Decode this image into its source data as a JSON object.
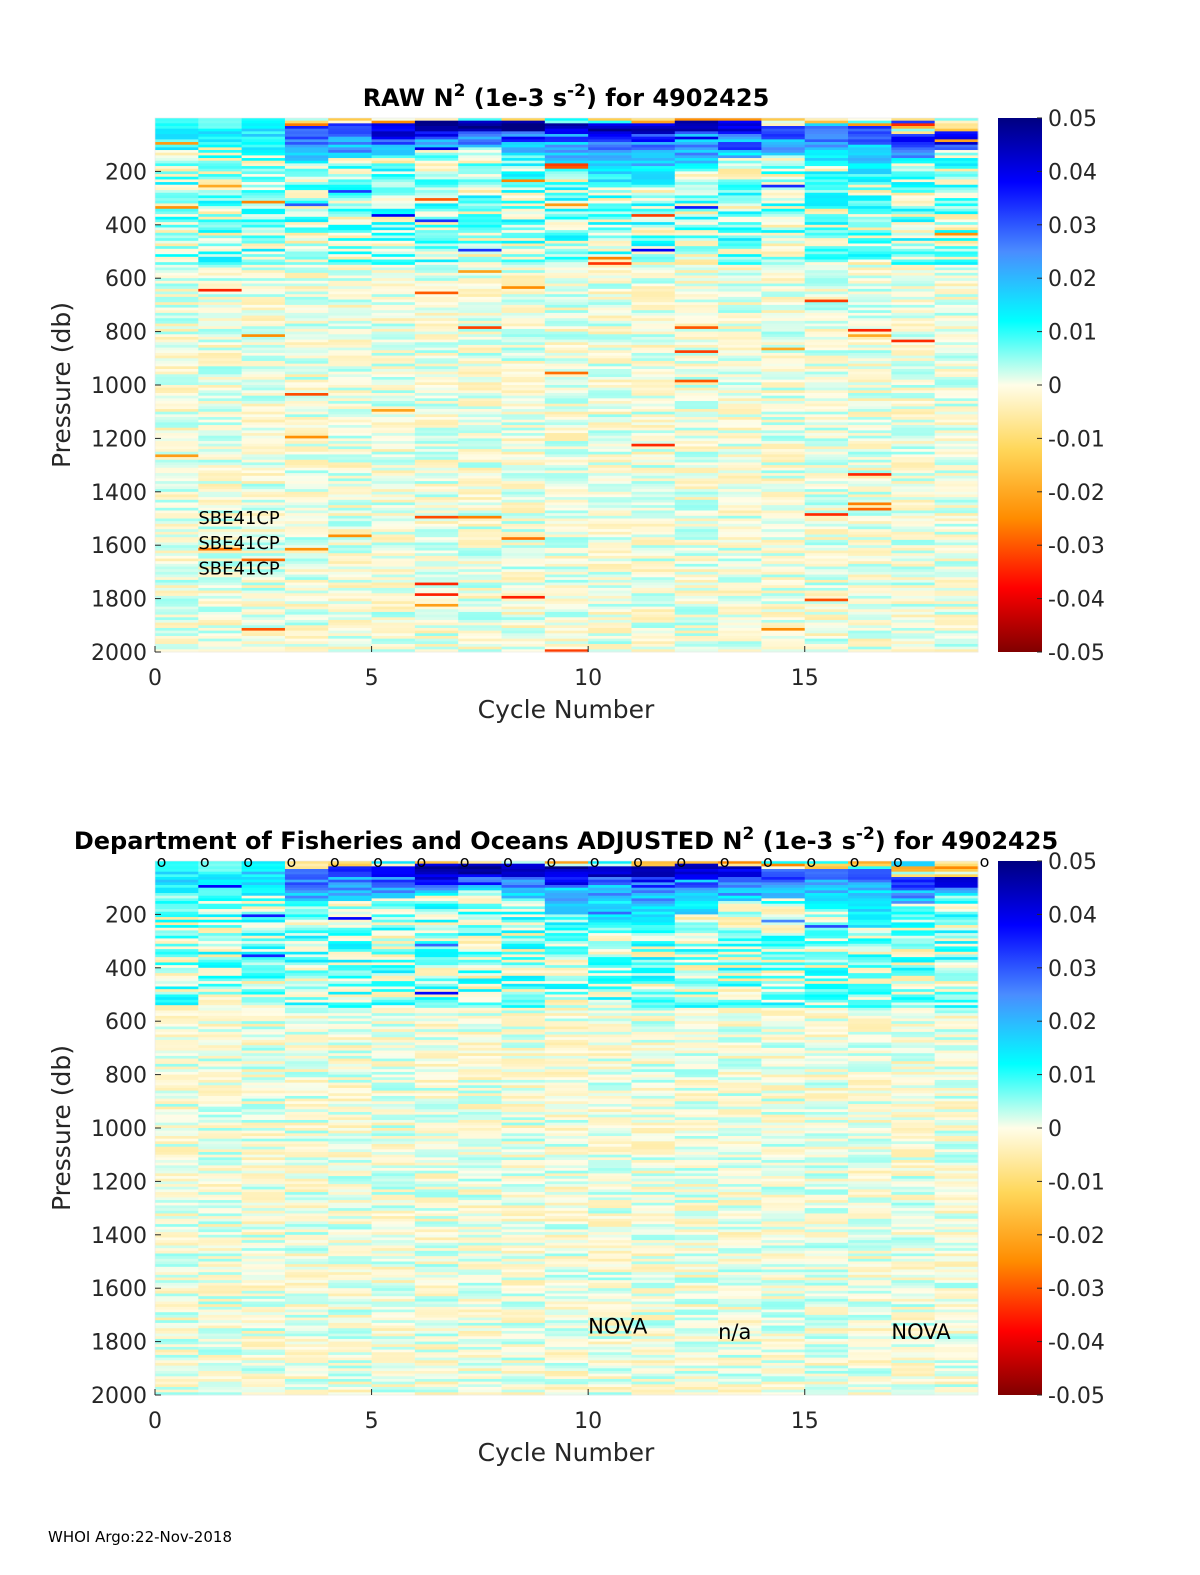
{
  "chart_data": [
    {
      "type": "heatmap",
      "title_parts": [
        "RAW N",
        "2",
        " (1e-3 s",
        "-2",
        ") for 4902425"
      ],
      "xlabel": "Cycle Number",
      "ylabel": "Pressure (db)",
      "xlim": [
        0,
        19
      ],
      "ylim": [
        0,
        2000
      ],
      "y_reversed": true,
      "xticks": [
        "0",
        "5",
        "10",
        "15"
      ],
      "xtick_values": [
        0,
        5,
        10,
        15
      ],
      "yticks": [
        "200",
        "400",
        "600",
        "800",
        "1000",
        "1200",
        "1400",
        "1600",
        "1800",
        "2000"
      ],
      "ytick_values": [
        200,
        400,
        600,
        800,
        1000,
        1200,
        1400,
        1600,
        1800,
        2000
      ],
      "colorbar": {
        "range": [
          -0.05,
          0.05
        ],
        "ticks": [
          "0.05",
          "0.04",
          "0.03",
          "0.02",
          "0.01",
          "0",
          "-0.01",
          "-0.02",
          "-0.03",
          "-0.04",
          "-0.05"
        ],
        "tick_values": [
          0.05,
          0.04,
          0.03,
          0.02,
          0.01,
          0,
          -0.01,
          -0.02,
          -0.03,
          -0.04,
          -0.05
        ],
        "colormap": "jet-white-center"
      },
      "annotations": [
        {
          "text": "SBE41CP",
          "cycle": 1,
          "pressure": 1520
        },
        {
          "text": "SBE41CP",
          "cycle": 1,
          "pressure": 1615
        },
        {
          "text": "SBE41CP",
          "cycle": 1,
          "pressure": 1710
        }
      ],
      "profiles": {
        "cycles": [
          0,
          1,
          2,
          3,
          4,
          5,
          6,
          7,
          8,
          9,
          10,
          11,
          12,
          13,
          14,
          15,
          16,
          17,
          18
        ],
        "surface_strength": [
          0.012,
          0.008,
          0.015,
          0.035,
          0.04,
          0.045,
          0.05,
          0.05,
          0.05,
          0.05,
          0.05,
          0.05,
          0.05,
          0.045,
          0.035,
          0.03,
          0.035,
          0.04,
          0.045
        ],
        "mixed_layer_db": [
          0,
          0,
          0,
          30,
          20,
          20,
          10,
          10,
          10,
          20,
          20,
          20,
          10,
          20,
          30,
          30,
          30,
          60,
          60
        ],
        "thermocline_depth_db": [
          120,
          110,
          130,
          160,
          150,
          140,
          120,
          110,
          140,
          200,
          250,
          260,
          200,
          150,
          140,
          180,
          250,
          160,
          120
        ]
      }
    },
    {
      "type": "heatmap",
      "title_parts": [
        "Department of Fisheries and Oceans  ADJUSTED N",
        "2",
        " (1e-3 s",
        "-2",
        ") for 4902425"
      ],
      "xlabel": "Cycle Number",
      "ylabel": "Pressure (db)",
      "xlim": [
        0,
        19
      ],
      "ylim": [
        0,
        2000
      ],
      "y_reversed": true,
      "xticks": [
        "0",
        "5",
        "10",
        "15"
      ],
      "xtick_values": [
        0,
        5,
        10,
        15
      ],
      "yticks": [
        "200",
        "400",
        "600",
        "800",
        "1000",
        "1200",
        "1400",
        "1600",
        "1800",
        "2000"
      ],
      "ytick_values": [
        200,
        400,
        600,
        800,
        1000,
        1200,
        1400,
        1600,
        1800,
        2000
      ],
      "colorbar": {
        "range": [
          -0.05,
          0.05
        ],
        "ticks": [
          "0.05",
          "0.04",
          "0.03",
          "0.02",
          "0.01",
          "0",
          "-0.01",
          "-0.02",
          "-0.03",
          "-0.04",
          "-0.05"
        ],
        "tick_values": [
          0.05,
          0.04,
          0.03,
          0.02,
          0.01,
          0,
          -0.01,
          -0.02,
          -0.03,
          -0.04,
          -0.05
        ],
        "colormap": "jet-white-center"
      },
      "qc_markers": {
        "symbol": "o",
        "cycles": [
          0,
          1,
          2,
          3,
          4,
          5,
          6,
          7,
          8,
          9,
          10,
          11,
          12,
          13,
          14,
          15,
          16,
          17,
          19
        ]
      },
      "annotations": [
        {
          "text": "NOVA",
          "cycle": 10,
          "pressure": 1770
        },
        {
          "text": "n/a",
          "cycle": 13,
          "pressure": 1790
        },
        {
          "text": "NOVA",
          "cycle": 17,
          "pressure": 1790
        }
      ],
      "profiles": {
        "cycles": [
          0,
          1,
          2,
          3,
          4,
          5,
          6,
          7,
          8,
          9,
          10,
          11,
          12,
          13,
          14,
          15,
          16,
          17,
          18
        ],
        "surface_strength": [
          0.012,
          0.008,
          0.015,
          0.035,
          0.04,
          0.045,
          0.05,
          0.05,
          0.05,
          0.05,
          0.05,
          0.05,
          0.05,
          0.045,
          0.035,
          0.03,
          0.035,
          0.04,
          0.045
        ],
        "mixed_layer_db": [
          0,
          0,
          0,
          30,
          20,
          20,
          10,
          10,
          10,
          20,
          20,
          20,
          10,
          20,
          30,
          30,
          30,
          60,
          60
        ],
        "thermocline_depth_db": [
          120,
          110,
          130,
          160,
          150,
          140,
          120,
          110,
          140,
          200,
          250,
          260,
          200,
          150,
          140,
          180,
          250,
          160,
          120
        ]
      }
    }
  ],
  "footer": "WHOI Argo:22-Nov-2018"
}
